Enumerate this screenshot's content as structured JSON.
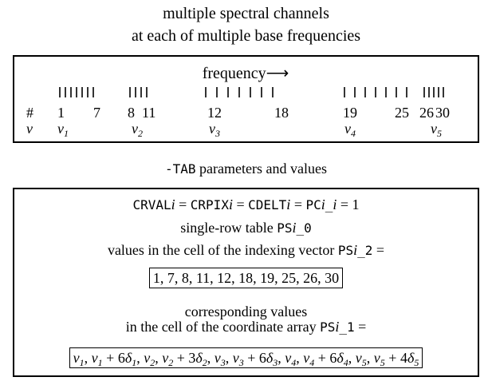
{
  "header": {
    "title_lines": [
      "multiple spectral channels",
      "at each of multiple base frequencies"
    ]
  },
  "top_box": {
    "axis_label": "frequency",
    "arrow": "⟶",
    "index_symbol": "#",
    "channel_numbers": [
      "1",
      "7",
      "8",
      "11",
      "12",
      "18",
      "19",
      "25",
      "26",
      "30"
    ],
    "nu_symbol": "ν",
    "base_frequencies": [
      {
        "t": "ν",
        "s": "1"
      },
      {
        "t": "ν",
        "s": "2"
      },
      {
        "t": "ν",
        "s": "3"
      },
      {
        "t": "ν",
        "s": "4"
      },
      {
        "t": "ν",
        "s": "5"
      }
    ]
  },
  "section_title": [
    {
      "m": "-TAB"
    },
    {
      "t": " parameters and values"
    }
  ],
  "bottom_box": {
    "lines": [
      [
        {
          "m": "CRVAL"
        },
        {
          "i": "i"
        },
        {
          "t": " = "
        },
        {
          "m": "CRPIX"
        },
        {
          "i": "i"
        },
        {
          "t": " = "
        },
        {
          "m": "CDELT"
        },
        {
          "i": "i"
        },
        {
          "t": " = "
        },
        {
          "m": "PC"
        },
        {
          "i": "i"
        },
        {
          "m": "_"
        },
        {
          "i": "i"
        },
        {
          "t": " = 1"
        }
      ],
      [
        {
          "t": "single-row table "
        },
        {
          "m": "PS"
        },
        {
          "i": "i"
        },
        {
          "m": "_0"
        }
      ],
      [
        {
          "t": "values in the cell of the indexing vector "
        },
        {
          "m": "PS"
        },
        {
          "i": "i"
        },
        {
          "m": "_2"
        },
        {
          "t": " ="
        }
      ],
      [
        {
          "t": "1, 7, 8, 11, 12, 18, 19, 25, 26, 30"
        }
      ],
      [
        {
          "t": "corresponding values"
        }
      ],
      [
        {
          "t": "in the cell of the coordinate array "
        },
        {
          "m": "PS"
        },
        {
          "i": "i"
        },
        {
          "m": "_1"
        },
        {
          "t": " ="
        }
      ],
      [
        {
          "i": "ν"
        },
        {
          "s": "1"
        },
        {
          "t": ", "
        },
        {
          "i": "ν"
        },
        {
          "s": "1"
        },
        {
          "t": " + 6"
        },
        {
          "i": "δ"
        },
        {
          "s": "1"
        },
        {
          "t": ", "
        },
        {
          "i": "ν"
        },
        {
          "s": "2"
        },
        {
          "t": ", "
        },
        {
          "i": "ν"
        },
        {
          "s": "2"
        },
        {
          "t": " + 3"
        },
        {
          "i": "δ"
        },
        {
          "s": "2"
        },
        {
          "t": ", "
        },
        {
          "i": "ν"
        },
        {
          "s": "3"
        },
        {
          "t": ", "
        },
        {
          "i": "ν"
        },
        {
          "s": "3"
        },
        {
          "t": " + 6"
        },
        {
          "i": "δ"
        },
        {
          "s": "3"
        },
        {
          "t": ", "
        },
        {
          "i": "ν"
        },
        {
          "s": "4"
        },
        {
          "t": ", "
        },
        {
          "i": "ν"
        },
        {
          "s": "4"
        },
        {
          "t": " + 6"
        },
        {
          "i": "δ"
        },
        {
          "s": "4"
        },
        {
          "t": ", "
        },
        {
          "i": "ν"
        },
        {
          "s": "5"
        },
        {
          "t": ", "
        },
        {
          "i": "ν"
        },
        {
          "s": "5"
        },
        {
          "t": " + 4"
        },
        {
          "i": "δ"
        },
        {
          "s": "5"
        }
      ]
    ]
  }
}
